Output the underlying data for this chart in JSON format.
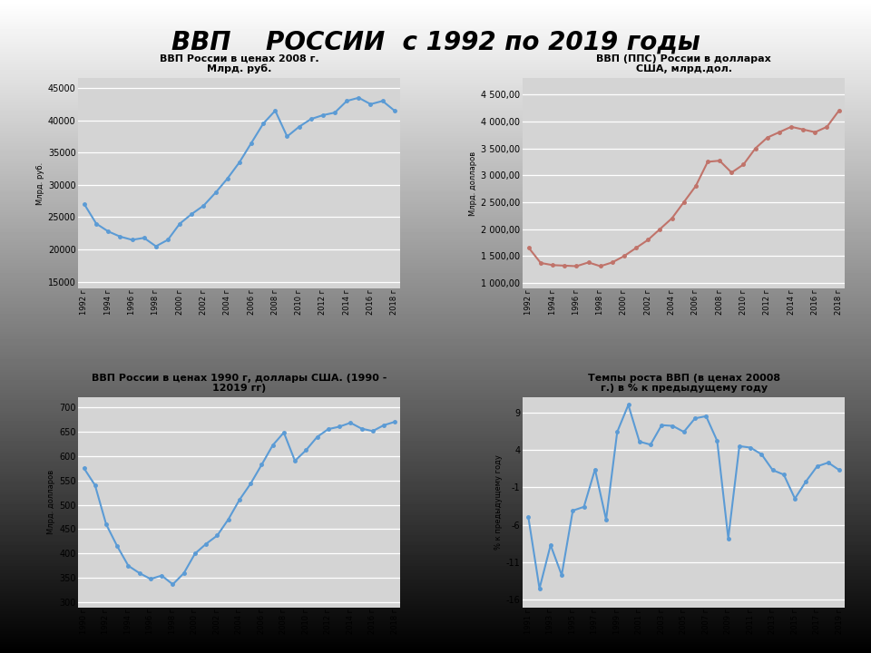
{
  "title": "ВВП    РОССИИ  с 1992 по 2019 годы",
  "bg_color": "#c0c0c0",
  "plot_bg_color": "#c8c8c8",
  "chart1": {
    "title": "ВВП России в ценах 2008 г.\nМлрд. руб.",
    "ylabel": "Млрд. руб.",
    "color": "#5b9bd5",
    "years": [
      1992,
      1993,
      1994,
      1995,
      1996,
      1997,
      1998,
      1999,
      2000,
      2001,
      2002,
      2003,
      2004,
      2005,
      2006,
      2007,
      2008,
      2009,
      2010,
      2011,
      2012,
      2013,
      2014,
      2015,
      2016,
      2017,
      2018
    ],
    "values": [
      27000,
      24000,
      22800,
      22000,
      21500,
      21800,
      20500,
      21500,
      24000,
      25500,
      26800,
      28800,
      31000,
      33500,
      36500,
      39500,
      41500,
      37500,
      39000,
      40200,
      40800,
      41200,
      43000,
      43500,
      42500,
      43000,
      41500
    ],
    "xtick_step": 2,
    "ylim": [
      14000,
      46500
    ],
    "yticks": [
      15000,
      20000,
      25000,
      30000,
      35000,
      40000,
      45000
    ]
  },
  "chart2": {
    "title": "ВВП (ППС) России в долларах\nСША, млрд.дол.",
    "ylabel": "Млрд. долларов",
    "color": "#c0736a",
    "years": [
      1992,
      1993,
      1994,
      1995,
      1996,
      1997,
      1998,
      1999,
      2000,
      2001,
      2002,
      2003,
      2004,
      2005,
      2006,
      2007,
      2008,
      2009,
      2010,
      2011,
      2012,
      2013,
      2014,
      2015,
      2016,
      2017,
      2018
    ],
    "values": [
      1650,
      1370,
      1330,
      1320,
      1310,
      1380,
      1310,
      1380,
      1500,
      1650,
      1800,
      2000,
      2200,
      2500,
      2800,
      3250,
      3270,
      3050,
      3200,
      3500,
      3700,
      3800,
      3900,
      3850,
      3800,
      3900,
      4200
    ],
    "xtick_step": 2,
    "ylim": [
      900,
      4800
    ],
    "yticks": [
      1000,
      1500,
      2000,
      2500,
      3000,
      3500,
      4000,
      4500
    ]
  },
  "chart3": {
    "title": "ВВП России в ценах 1990 г, доллары США. (1990 -\n12019 гг)",
    "ylabel": "Млрд. долларов",
    "color": "#5b9bd5",
    "years": [
      1990,
      1991,
      1992,
      1993,
      1994,
      1995,
      1996,
      1997,
      1998,
      1999,
      2000,
      2001,
      2002,
      2003,
      2004,
      2005,
      2006,
      2007,
      2008,
      2009,
      2010,
      2011,
      2012,
      2013,
      2014,
      2015,
      2016,
      2017,
      2018
    ],
    "values": [
      575,
      540,
      460,
      415,
      375,
      360,
      348,
      355,
      337,
      360,
      400,
      420,
      437,
      470,
      510,
      543,
      582,
      622,
      648,
      590,
      612,
      639,
      655,
      660,
      668,
      656,
      651,
      663,
      670
    ],
    "xtick_step": 2,
    "ylim": [
      290,
      720
    ],
    "yticks": [
      300,
      350,
      400,
      450,
      500,
      550,
      600,
      650,
      700
    ]
  },
  "chart4": {
    "title": "Темпы роста ВВП (в ценах 20008\nг.) в % к предыдущему году",
    "ylabel": "% к предыдущему году",
    "color": "#5b9bd5",
    "years": [
      1991,
      1992,
      1993,
      1994,
      1995,
      1996,
      1997,
      1998,
      1999,
      2000,
      2001,
      2002,
      2003,
      2004,
      2005,
      2006,
      2007,
      2008,
      2009,
      2010,
      2011,
      2012,
      2013,
      2014,
      2015,
      2016,
      2017,
      2018,
      2019
    ],
    "values": [
      -5.0,
      -14.5,
      -8.7,
      -12.7,
      -4.1,
      -3.6,
      1.4,
      -5.3,
      6.4,
      10.0,
      5.1,
      4.7,
      7.3,
      7.2,
      6.4,
      8.2,
      8.5,
      5.2,
      -7.8,
      4.5,
      4.3,
      3.4,
      1.3,
      0.7,
      -2.5,
      -0.2,
      1.8,
      2.3,
      1.3
    ],
    "xtick_step": 2,
    "ylim": [
      -17,
      11
    ],
    "yticks": [
      -16,
      -11,
      -6,
      -1,
      4,
      9
    ]
  }
}
